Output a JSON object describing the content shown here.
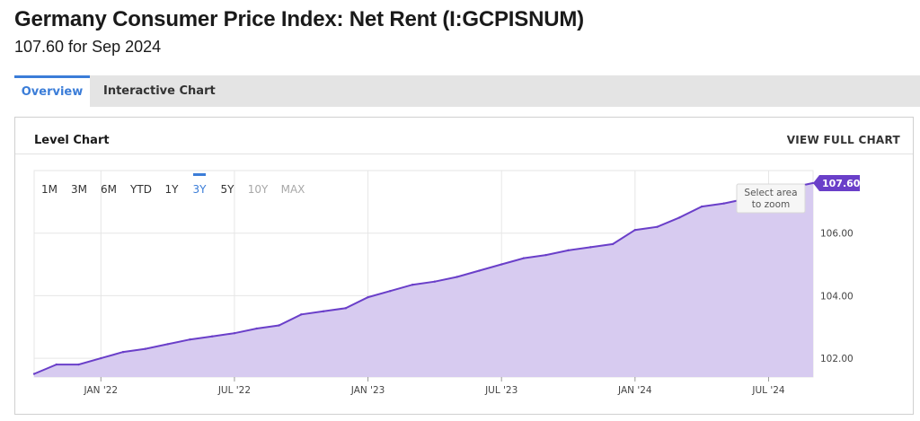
{
  "header": {
    "title": "Germany Consumer Price Index: Net Rent (I:GCPISNUM)",
    "subtitle": "107.60 for Sep 2024"
  },
  "tabs": [
    {
      "label": "Overview",
      "active": true
    },
    {
      "label": "Interactive Chart",
      "active": false
    }
  ],
  "panel": {
    "title": "Level Chart",
    "view_full_label": "VIEW FULL CHART"
  },
  "range_buttons": [
    {
      "label": "1M",
      "state": "normal"
    },
    {
      "label": "3M",
      "state": "normal"
    },
    {
      "label": "6M",
      "state": "normal"
    },
    {
      "label": "YTD",
      "state": "normal"
    },
    {
      "label": "1Y",
      "state": "normal"
    },
    {
      "label": "3Y",
      "state": "active"
    },
    {
      "label": "5Y",
      "state": "normal"
    },
    {
      "label": "10Y",
      "state": "disabled"
    },
    {
      "label": "MAX",
      "state": "disabled"
    }
  ],
  "zoom_hint": [
    "Select area",
    "to zoom"
  ],
  "colors": {
    "line": "#6a3fc9",
    "fill": "#d7cbf0",
    "accent": "#3b7dd8",
    "grid": "#e6e6e6"
  },
  "chart_data": {
    "type": "area",
    "x": [
      "2021-10",
      "2021-11",
      "2021-12",
      "2022-01",
      "2022-02",
      "2022-03",
      "2022-04",
      "2022-05",
      "2022-06",
      "2022-07",
      "2022-08",
      "2022-09",
      "2022-10",
      "2022-11",
      "2022-12",
      "2023-01",
      "2023-02",
      "2023-03",
      "2023-04",
      "2023-05",
      "2023-06",
      "2023-07",
      "2023-08",
      "2023-09",
      "2023-10",
      "2023-11",
      "2023-12",
      "2024-01",
      "2024-02",
      "2024-03",
      "2024-04",
      "2024-05",
      "2024-06",
      "2024-07",
      "2024-08",
      "2024-09"
    ],
    "values": [
      101.5,
      101.8,
      101.8,
      102.0,
      102.2,
      102.3,
      102.45,
      102.6,
      102.7,
      102.8,
      102.95,
      103.05,
      103.4,
      103.5,
      103.6,
      103.95,
      104.15,
      104.35,
      104.45,
      104.6,
      104.8,
      105.0,
      105.2,
      105.3,
      105.45,
      105.55,
      105.65,
      106.1,
      106.2,
      106.5,
      106.85,
      106.95,
      107.1,
      107.3,
      107.45,
      107.6
    ],
    "x_ticks": [
      {
        "x": "2022-01",
        "label": "JAN '22"
      },
      {
        "x": "2022-07",
        "label": "JUL '22"
      },
      {
        "x": "2023-01",
        "label": "JAN '23"
      },
      {
        "x": "2023-07",
        "label": "JUL '23"
      },
      {
        "x": "2024-01",
        "label": "JAN '24"
      },
      {
        "x": "2024-07",
        "label": "JUL '24"
      }
    ],
    "y_ticks": [
      102,
      104,
      106
    ],
    "y_tick_labels": [
      "102.00",
      "104.00",
      "106.00"
    ],
    "ylim": [
      101.4,
      108.0
    ],
    "last_value_label": "107.60",
    "grid": true
  }
}
